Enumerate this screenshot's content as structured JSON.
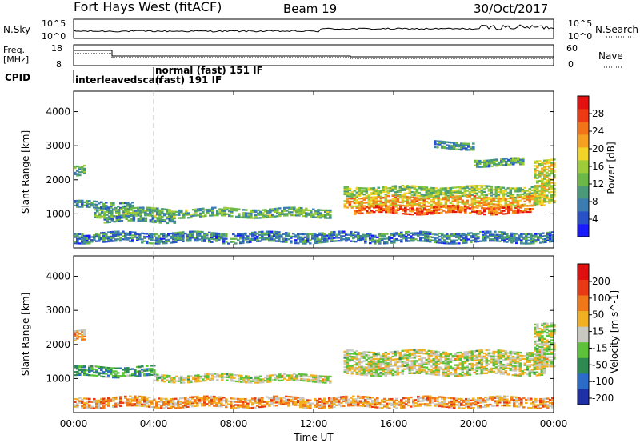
{
  "header": {
    "radar": "Fort Hays West (fitACF)",
    "beam": "Beam 19",
    "date": "30/Oct/2017"
  },
  "left_labels": {
    "nsky": "N.Sky",
    "freq": "Freq.",
    "freq_unit": "[MHz]",
    "cpid": "CPID"
  },
  "right_labels": {
    "nsearch": "N.Search",
    "nave": "Nave"
  },
  "top_panel": {
    "left_ticks": [
      "10^5",
      "10^0"
    ],
    "right_ticks": [
      "10^5",
      "10^0"
    ]
  },
  "freq_panel": {
    "left_ticks": [
      "18",
      "8"
    ],
    "right_ticks": [
      "60",
      "0"
    ]
  },
  "cpid_panel": {
    "entries": [
      "interleavedscan",
      "normal (fast) 151 IF",
      "(fast) 191 IF"
    ]
  },
  "chart_data": [
    {
      "type": "heatmap",
      "panel": "power",
      "xlabel": "",
      "ylabel": "Slant Range [km]",
      "x_ticks": [
        "00:00",
        "04:00",
        "08:00",
        "12:00",
        "16:00",
        "20:00",
        "00:00"
      ],
      "y_ticks": [
        1000,
        2000,
        3000,
        4000
      ],
      "ylim": [
        0,
        4600
      ],
      "xlim_hours": [
        0,
        24
      ],
      "colorbar": {
        "label": "Power [dB]",
        "ticks": [
          4,
          8,
          12,
          16,
          20,
          24,
          28
        ],
        "range": [
          0,
          32
        ],
        "colors": [
          "#1a1aff",
          "#2a52c8",
          "#3b7db0",
          "#4a9a7a",
          "#6bb848",
          "#9ccc3a",
          "#f0d428",
          "#f5a020",
          "#f27318",
          "#ee3a14",
          "#e51010"
        ]
      },
      "regions": [
        {
          "t0": 0.0,
          "t1": 0.5,
          "r0": 2100,
          "r1": 2400,
          "level": 0.35
        },
        {
          "t0": 0.0,
          "t1": 3.0,
          "r0": 1150,
          "r1": 1350,
          "level": 0.3
        },
        {
          "t0": 1.0,
          "t1": 12.8,
          "r0": 900,
          "r1": 1150,
          "level": 0.38
        },
        {
          "t0": 1.5,
          "t1": 5.0,
          "r0": 750,
          "r1": 900,
          "level": 0.3
        },
        {
          "t0": 0.0,
          "t1": 24.0,
          "r0": 150,
          "r1": 450,
          "level": 0.25
        },
        {
          "t0": 13.5,
          "t1": 23.5,
          "r0": 1500,
          "r1": 1800,
          "level": 0.45
        },
        {
          "t0": 13.5,
          "t1": 23.5,
          "r0": 1200,
          "r1": 1500,
          "level": 0.65
        },
        {
          "t0": 14.0,
          "t1": 23.0,
          "r0": 1000,
          "r1": 1200,
          "level": 0.82
        },
        {
          "t0": 20.0,
          "t1": 22.5,
          "r0": 2400,
          "r1": 2600,
          "level": 0.35
        },
        {
          "t0": 18.0,
          "t1": 20.0,
          "r0": 2900,
          "r1": 3100,
          "level": 0.3
        },
        {
          "t0": 23.0,
          "t1": 24.0,
          "r0": 1300,
          "r1": 2600,
          "level": 0.55
        }
      ]
    },
    {
      "type": "heatmap",
      "panel": "velocity",
      "xlabel": "Time UT",
      "ylabel": "Slant Range [km]",
      "x_ticks": [
        "00:00",
        "04:00",
        "08:00",
        "12:00",
        "16:00",
        "20:00",
        "00:00"
      ],
      "y_ticks": [
        1000,
        2000,
        3000,
        4000
      ],
      "ylim": [
        0,
        4600
      ],
      "xlim_hours": [
        0,
        24
      ],
      "colorbar": {
        "label": "Velocity [m s^-1]",
        "ticks": [
          200,
          100,
          50,
          15,
          -15,
          -50,
          -100,
          -200
        ],
        "colors": [
          "#1f2fa8",
          "#2a6cc8",
          "#2e8a50",
          "#5cc23a",
          "#c8c8c0",
          "#f0b020",
          "#f07818",
          "#e83a14",
          "#e01010"
        ]
      },
      "regions": [
        {
          "t0": 0.0,
          "t1": 0.5,
          "r0": 2100,
          "r1": 2400,
          "level": 0.62
        },
        {
          "t0": 0.0,
          "t1": 4.0,
          "r0": 1050,
          "r1": 1350,
          "level": 0.3
        },
        {
          "t0": 4.0,
          "t1": 12.8,
          "r0": 900,
          "r1": 1100,
          "level": 0.5
        },
        {
          "t0": 0.0,
          "t1": 24.0,
          "r0": 150,
          "r1": 450,
          "level": 0.65
        },
        {
          "t0": 13.5,
          "t1": 23.5,
          "r0": 1100,
          "r1": 1800,
          "level": 0.5
        },
        {
          "t0": 23.0,
          "t1": 24.0,
          "r0": 1300,
          "r1": 2600,
          "level": 0.5
        }
      ]
    }
  ],
  "colors": {
    "frame": "#000000",
    "dashed": "#bbbbbb",
    "background": "#ffffff"
  }
}
